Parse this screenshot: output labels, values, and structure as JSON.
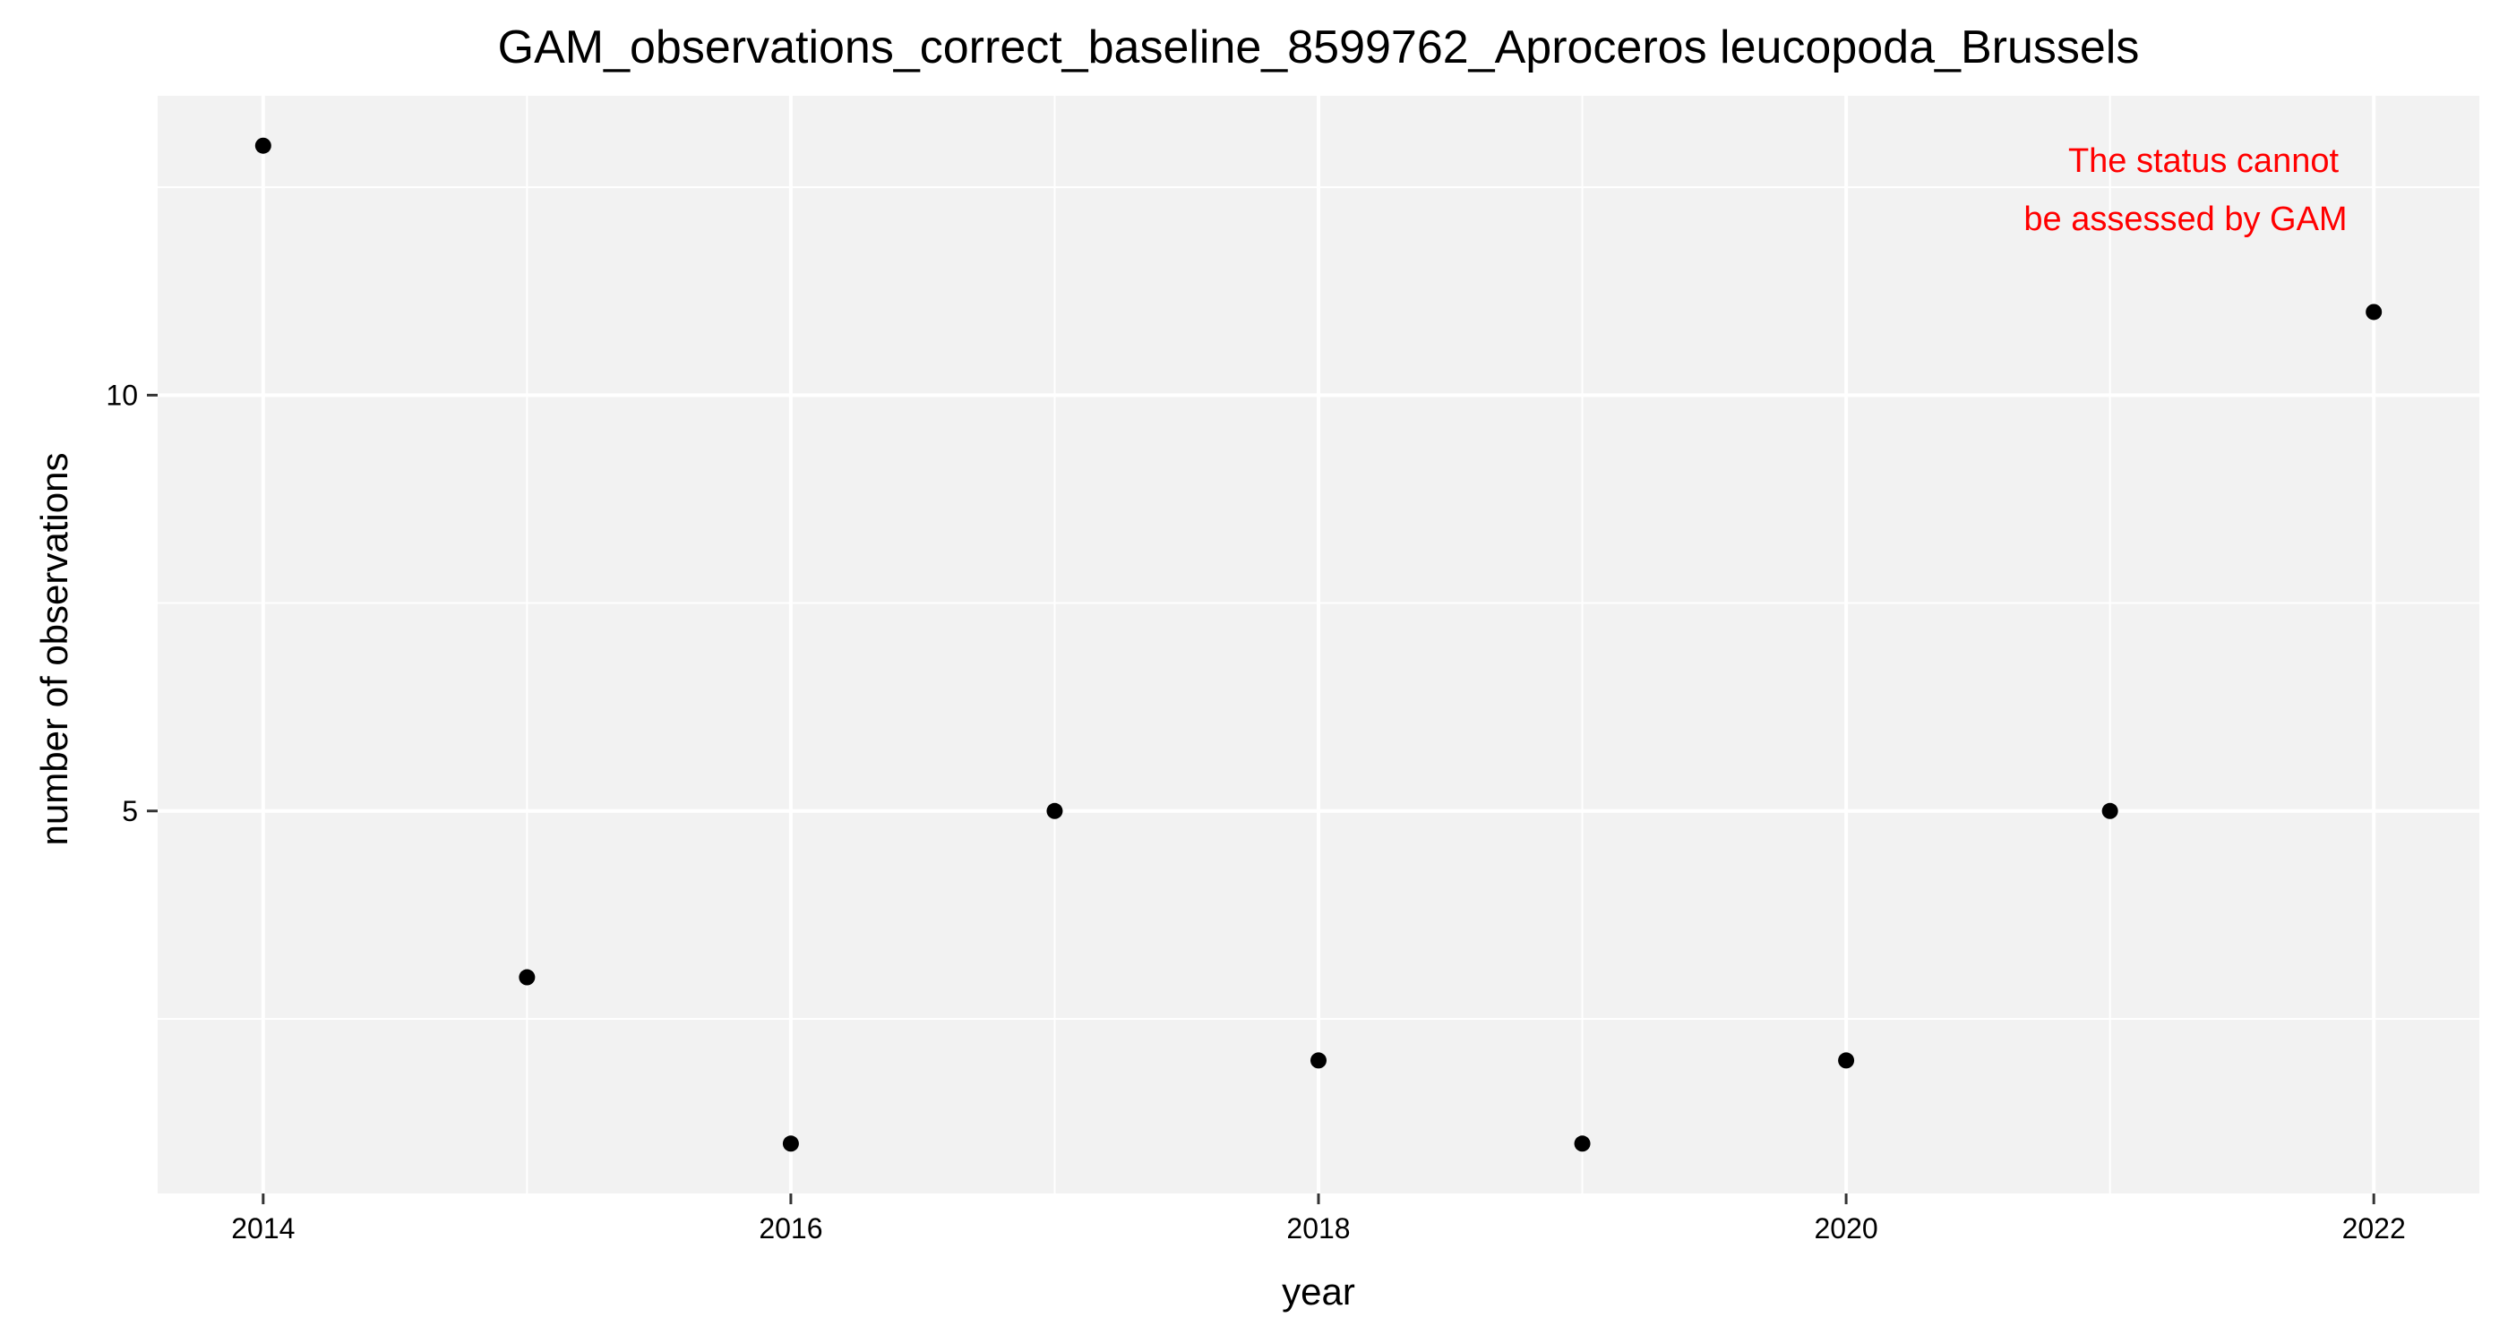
{
  "chart_data": {
    "type": "scatter",
    "title": "GAM_observations_correct_baseline_8599762_Aproceros leucopoda_Brussels",
    "xlabel": "year",
    "ylabel": "number of observations",
    "xlim": [
      2013.6,
      2022.4
    ],
    "ylim": [
      0.4,
      13.6
    ],
    "x_ticks": [
      2014,
      2016,
      2018,
      2020,
      2022
    ],
    "x_tick_labels": [
      "2014",
      "2016",
      "2018",
      "2020",
      "2022"
    ],
    "y_ticks": [
      5,
      10
    ],
    "y_tick_labels": [
      "5",
      "10"
    ],
    "grid": true,
    "series": [
      {
        "x": [
          2014,
          2015,
          2016,
          2017,
          2018,
          2019,
          2020,
          2021,
          2022
        ],
        "y": [
          13,
          3,
          1,
          5,
          2,
          1,
          2,
          5,
          11
        ],
        "color": "#000000"
      }
    ],
    "annotation": {
      "lines": [
        "The status cannot",
        "be assessed by GAM"
      ],
      "color": "#ff0000",
      "placement": "top-right"
    },
    "panel_background": "#f2f2f2",
    "grid_color": "#ffffff"
  }
}
